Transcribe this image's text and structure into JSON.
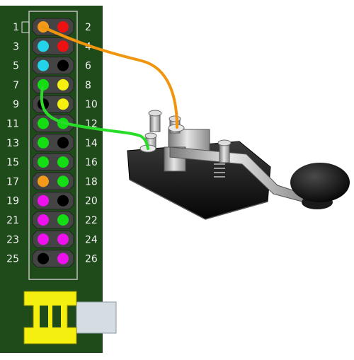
{
  "board": {
    "colors": {
      "board": "#1f4a1a",
      "header_frame": "#b8b8b8",
      "socket": "#444444",
      "black": "#000000",
      "red": "#ee1111",
      "orange": "#f39a1a",
      "cyan": "#22d3ea",
      "yellow": "#f5f010",
      "green": "#14dd14",
      "magenta": "#ee11ee",
      "connector": "#f5ef10",
      "cable": "#d5dde2"
    },
    "pins": [
      {
        "left": "1",
        "right": "2",
        "left_color": "orange",
        "right_color": "red"
      },
      {
        "left": "3",
        "right": "4",
        "left_color": "cyan",
        "right_color": "red"
      },
      {
        "left": "5",
        "right": "6",
        "left_color": "cyan",
        "right_color": "black"
      },
      {
        "left": "7",
        "right": "8",
        "left_color": "green",
        "right_color": "yellow"
      },
      {
        "left": "9",
        "right": "10",
        "left_color": "black",
        "right_color": "yellow"
      },
      {
        "left": "11",
        "right": "12",
        "left_color": "green",
        "right_color": "green"
      },
      {
        "left": "13",
        "right": "14",
        "left_color": "green",
        "right_color": "black"
      },
      {
        "left": "15",
        "right": "16",
        "left_color": "green",
        "right_color": "green"
      },
      {
        "left": "17",
        "right": "18",
        "left_color": "orange",
        "right_color": "green"
      },
      {
        "left": "19",
        "right": "20",
        "left_color": "magenta",
        "right_color": "black"
      },
      {
        "left": "21",
        "right": "22",
        "left_color": "magenta",
        "right_color": "green"
      },
      {
        "left": "23",
        "right": "24",
        "left_color": "magenta",
        "right_color": "magenta"
      },
      {
        "left": "25",
        "right": "26",
        "left_color": "black",
        "right_color": "magenta"
      }
    ]
  },
  "wires": [
    {
      "from_pin": "1",
      "to": "key-right-terminal",
      "color": "#f0960e"
    },
    {
      "from_pin": "7",
      "to": "key-left-terminal",
      "color": "#28dd28"
    }
  ],
  "key": {
    "colors": {
      "base": "#141414",
      "metal": "#b9b9b9",
      "knob": "#0e0e0e"
    }
  }
}
